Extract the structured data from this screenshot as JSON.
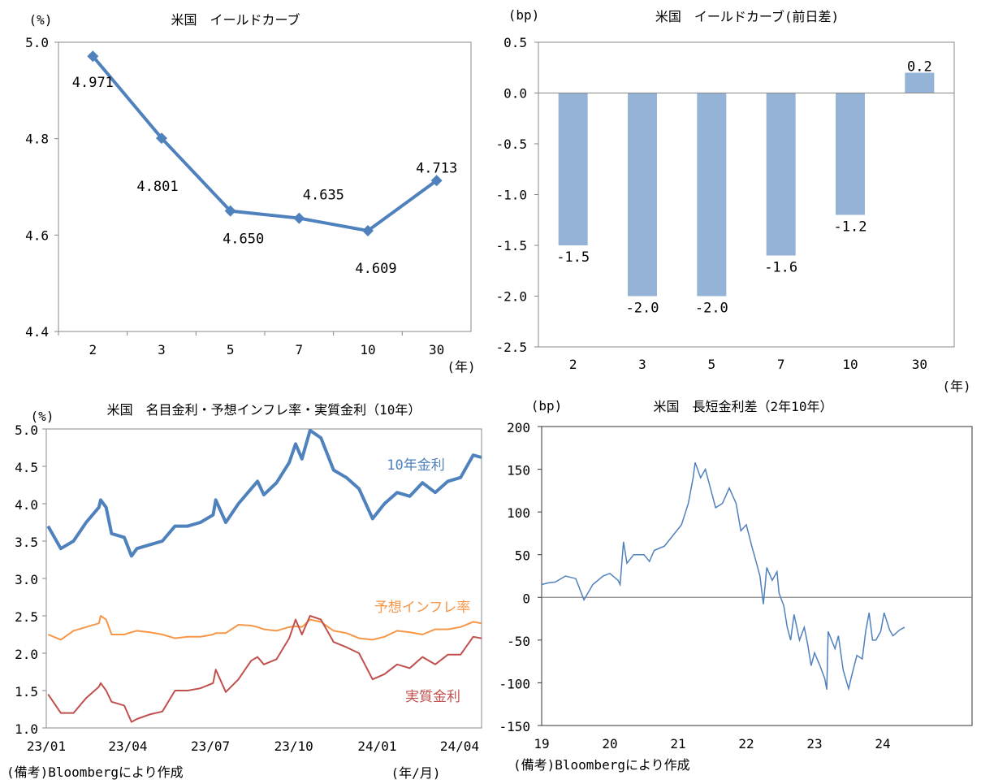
{
  "chart_data": [
    {
      "type": "line",
      "title": "米国　イールドカーブ",
      "ylabel": "(%)",
      "xlabel": "(年)",
      "categories": [
        "2",
        "3",
        "5",
        "7",
        "10",
        "30"
      ],
      "values": [
        4.971,
        4.801,
        4.65,
        4.635,
        4.609,
        4.713
      ],
      "data_labels": [
        "4.971",
        "4.801",
        "4.650",
        "4.635",
        "4.609",
        "4.713"
      ],
      "ylim": [
        4.4,
        5.0
      ],
      "yticks": [
        "4.4",
        "4.6",
        "4.8",
        "5.0"
      ],
      "ytick_values": [
        4.4,
        4.6,
        4.8,
        5.0
      ],
      "grid": false,
      "color": "#4f81bd",
      "marker": "diamond"
    },
    {
      "type": "bar",
      "title": "米国　イールドカーブ(前日差)",
      "ylabel": "(bp)",
      "xlabel": "(年)",
      "categories": [
        "2",
        "3",
        "5",
        "7",
        "10",
        "30"
      ],
      "values": [
        -1.5,
        -2.0,
        -2.0,
        -1.6,
        -1.2,
        0.2
      ],
      "data_labels": [
        "-1.5",
        "-2.0",
        "-2.0",
        "-1.6",
        "-1.2",
        "0.2"
      ],
      "ylim": [
        -2.5,
        0.5
      ],
      "yticks": [
        "-2.5",
        "-2.0",
        "-1.5",
        "-1.0",
        "-0.5",
        "0.0",
        "0.5"
      ],
      "ytick_values": [
        -2.5,
        -2.0,
        -1.5,
        -1.0,
        -0.5,
        0.0,
        0.5
      ],
      "grid": false,
      "color": "#95b3d7"
    },
    {
      "type": "line",
      "title": "米国　名目金利・予想インフレ率・実質金利（10年）",
      "ylabel": "(%)",
      "xlabel": "(年/月)",
      "ylim": [
        1.0,
        5.0
      ],
      "yticks": [
        "1.0",
        "1.5",
        "2.0",
        "2.5",
        "3.0",
        "3.5",
        "4.0",
        "4.5",
        "5.0"
      ],
      "ytick_values": [
        1.0,
        1.5,
        2.0,
        2.5,
        3.0,
        3.5,
        4.0,
        4.5,
        5.0
      ],
      "xticks": [
        "23/01",
        "23/04",
        "23/07",
        "23/10",
        "24/01",
        "24/04"
      ],
      "xtick_values": [
        "2023-01-01",
        "2023-04-01",
        "2023-07-01",
        "2023-10-01",
        "2024-01-01",
        "2024-04-01"
      ],
      "xlim": [
        "2023-01-01",
        "2024-04-25"
      ],
      "grid": false,
      "x": [
        "2023-01-03",
        "2023-01-17",
        "2023-01-31",
        "2023-02-14",
        "2023-02-28",
        "2023-03-02",
        "2023-03-08",
        "2023-03-14",
        "2023-03-28",
        "2023-04-05",
        "2023-04-11",
        "2023-04-25",
        "2023-05-09",
        "2023-05-23",
        "2023-06-06",
        "2023-06-20",
        "2023-07-04",
        "2023-07-07",
        "2023-07-18",
        "2023-08-01",
        "2023-08-15",
        "2023-08-22",
        "2023-08-29",
        "2023-09-12",
        "2023-09-26",
        "2023-10-03",
        "2023-10-10",
        "2023-10-19",
        "2023-10-31",
        "2023-11-14",
        "2023-11-28",
        "2023-12-12",
        "2023-12-27",
        "2024-01-09",
        "2024-01-23",
        "2024-02-06",
        "2024-02-20",
        "2024-03-05",
        "2024-03-19",
        "2024-04-02",
        "2024-04-16",
        "2024-04-25"
      ],
      "series": [
        {
          "name": "10年金利",
          "color": "#4f81bd",
          "values": [
            3.7,
            3.4,
            3.5,
            3.75,
            3.95,
            4.05,
            3.95,
            3.6,
            3.55,
            3.3,
            3.4,
            3.45,
            3.5,
            3.7,
            3.7,
            3.75,
            3.85,
            4.05,
            3.75,
            4.0,
            4.2,
            4.3,
            4.12,
            4.28,
            4.55,
            4.8,
            4.6,
            4.98,
            4.88,
            4.45,
            4.35,
            4.2,
            3.8,
            4.0,
            4.15,
            4.1,
            4.28,
            4.15,
            4.3,
            4.35,
            4.65,
            4.62
          ]
        },
        {
          "name": "予想インフレ率",
          "color": "#f79646",
          "values": [
            2.25,
            2.18,
            2.3,
            2.35,
            2.4,
            2.5,
            2.45,
            2.25,
            2.25,
            2.28,
            2.3,
            2.28,
            2.25,
            2.2,
            2.22,
            2.22,
            2.25,
            2.27,
            2.27,
            2.38,
            2.37,
            2.35,
            2.32,
            2.3,
            2.35,
            2.36,
            2.35,
            2.45,
            2.42,
            2.3,
            2.27,
            2.2,
            2.18,
            2.22,
            2.3,
            2.28,
            2.25,
            2.32,
            2.32,
            2.35,
            2.42,
            2.4
          ]
        },
        {
          "name": "実質金利",
          "color": "#c0504d",
          "values": [
            1.45,
            1.2,
            1.2,
            1.4,
            1.55,
            1.6,
            1.5,
            1.35,
            1.3,
            1.08,
            1.12,
            1.18,
            1.22,
            1.5,
            1.5,
            1.53,
            1.6,
            1.78,
            1.48,
            1.65,
            1.9,
            1.95,
            1.85,
            1.92,
            2.2,
            2.45,
            2.25,
            2.5,
            2.45,
            2.15,
            2.08,
            2.0,
            1.65,
            1.72,
            1.85,
            1.8,
            1.95,
            1.85,
            1.98,
            1.98,
            2.22,
            2.2
          ]
        }
      ],
      "footnote": "(備考)Bloombergにより作成"
    },
    {
      "type": "line",
      "title": "米国　長短金利差（2年10年）",
      "ylabel": "(bp)",
      "ylim": [
        -150,
        200
      ],
      "yticks": [
        "-150",
        "-100",
        "-50",
        "0",
        "50",
        "100",
        "150",
        "200"
      ],
      "ytick_values": [
        -150,
        -100,
        -50,
        0,
        50,
        100,
        150,
        200
      ],
      "xticks": [
        "19",
        "20",
        "21",
        "22",
        "23",
        "24"
      ],
      "xtick_values": [
        2019,
        2020,
        2021,
        2022,
        2023,
        2024
      ],
      "xlim": [
        2019,
        2024.32
      ],
      "grid": false,
      "zero_line": true,
      "color": "#4f81bd",
      "x": [
        2019.0,
        2019.1,
        2019.2,
        2019.35,
        2019.5,
        2019.62,
        2019.75,
        2019.9,
        2020.0,
        2020.12,
        2020.15,
        2020.2,
        2020.25,
        2020.35,
        2020.5,
        2020.58,
        2020.65,
        2020.8,
        2020.95,
        2021.05,
        2021.15,
        2021.22,
        2021.25,
        2021.33,
        2021.4,
        2021.5,
        2021.55,
        2021.65,
        2021.75,
        2021.85,
        2021.92,
        2022.0,
        2022.08,
        2022.15,
        2022.2,
        2022.25,
        2022.3,
        2022.38,
        2022.45,
        2022.48,
        2022.55,
        2022.6,
        2022.65,
        2022.7,
        2022.78,
        2022.85,
        2022.9,
        2022.95,
        2023.0,
        2023.08,
        2023.15,
        2023.18,
        2023.2,
        2023.3,
        2023.35,
        2023.42,
        2023.5,
        2023.55,
        2023.62,
        2023.7,
        2023.75,
        2023.8,
        2023.85,
        2023.9,
        2023.97,
        2024.02,
        2024.1,
        2024.15,
        2024.25,
        2024.32
      ],
      "values": [
        15,
        17,
        18,
        25,
        22,
        -3,
        15,
        25,
        28,
        20,
        15,
        65,
        40,
        50,
        50,
        42,
        55,
        60,
        75,
        85,
        110,
        140,
        158,
        140,
        150,
        120,
        105,
        110,
        128,
        110,
        78,
        85,
        60,
        40,
        25,
        -8,
        35,
        20,
        30,
        5,
        -10,
        -35,
        -50,
        -20,
        -50,
        -35,
        -55,
        -80,
        -65,
        -80,
        -95,
        -108,
        -40,
        -60,
        -45,
        -85,
        -107,
        -90,
        -68,
        -72,
        -40,
        -18,
        -50,
        -50,
        -40,
        -18,
        -38,
        -45,
        -38,
        -35
      ],
      "footnote": "(備考)Bloombergにより作成"
    }
  ]
}
